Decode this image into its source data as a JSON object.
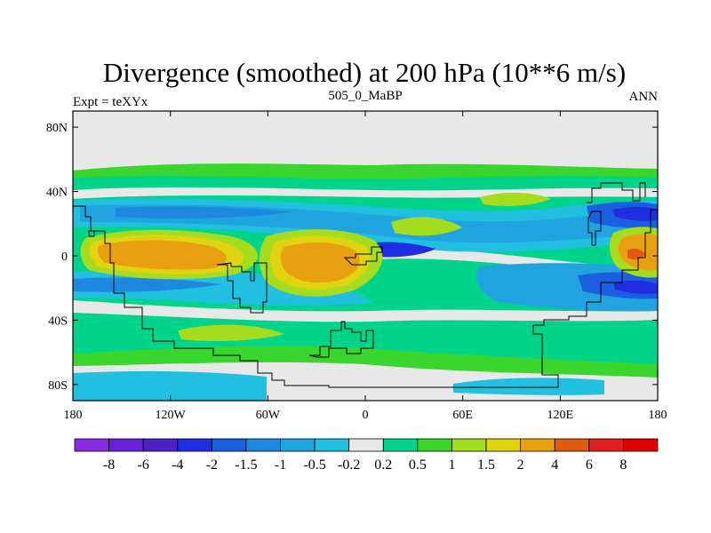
{
  "chart_data": {
    "type": "heatmap",
    "title": "Divergence (smoothed) at 200 hPa (10**6 m/s)",
    "left_label": "Expt = teXYx",
    "center_label": "505_0_MaBP",
    "right_label": "ANN",
    "xlim": [
      -180,
      180
    ],
    "ylim": [
      -90,
      90
    ],
    "x_ticks": [
      {
        "value": -180,
        "label": "180"
      },
      {
        "value": -120,
        "label": "120W"
      },
      {
        "value": -60,
        "label": "60W"
      },
      {
        "value": 0,
        "label": "0"
      },
      {
        "value": 60,
        "label": "60E"
      },
      {
        "value": 120,
        "label": "120E"
      },
      {
        "value": 180,
        "label": "180"
      }
    ],
    "y_ticks": [
      {
        "value": 80,
        "label": "80N"
      },
      {
        "value": 40,
        "label": "40N"
      },
      {
        "value": 0,
        "label": "0"
      },
      {
        "value": -40,
        "label": "40S"
      },
      {
        "value": -80,
        "label": "80S"
      }
    ],
    "colorbar": {
      "levels": [
        "-8",
        "-6",
        "-4",
        "-2",
        "-1.5",
        "-1",
        "-0.5",
        "-0.2",
        "0.2",
        "0.5",
        "1",
        "1.5",
        "2",
        "4",
        "6",
        "8"
      ],
      "colors": [
        "#8a2be2",
        "#6a1fd8",
        "#4b22c8",
        "#1e2ee0",
        "#1b5fe0",
        "#1e88e0",
        "#20a4e0",
        "#22c0e0",
        "#e8e8e8",
        "#00d48a",
        "#3ad62e",
        "#a6dc1e",
        "#e0d410",
        "#e8a010",
        "#e05a10",
        "#e02020",
        "#e00000"
      ]
    },
    "fields": [
      {
        "lon": -150,
        "lat": 5,
        "value": 3.2
      },
      {
        "lon": -110,
        "lat": 2,
        "value": 1.8
      },
      {
        "lon": -25,
        "lat": 0,
        "value": 3.6
      },
      {
        "lon": -70,
        "lat": -3,
        "value": 1.5
      },
      {
        "lon": 170,
        "lat": 2,
        "value": 4.8
      },
      {
        "lon": 20,
        "lat": 10,
        "value": 1.2
      },
      {
        "lon": 55,
        "lat": 20,
        "value": 1.6
      },
      {
        "lon": 30,
        "lat": -5,
        "value": 1.0
      },
      {
        "lon": -170,
        "lat": -30,
        "value": -1.4
      },
      {
        "lon": -160,
        "lat": 25,
        "value": -2.3
      },
      {
        "lon": -100,
        "lat": 28,
        "value": -1.2
      },
      {
        "lon": -30,
        "lat": 25,
        "value": -1.0
      },
      {
        "lon": 20,
        "lat": 0,
        "value": -2.2
      },
      {
        "lon": 90,
        "lat": 0,
        "value": -1.1
      },
      {
        "lon": 165,
        "lat": 28,
        "value": -3.0
      },
      {
        "lon": 165,
        "lat": -25,
        "value": -3.2
      },
      {
        "lon": -30,
        "lat": -35,
        "value": -0.8
      },
      {
        "lon": 80,
        "lat": -55,
        "value": -0.3
      }
    ],
    "grid": false,
    "projection": "cylindrical equidistant"
  }
}
